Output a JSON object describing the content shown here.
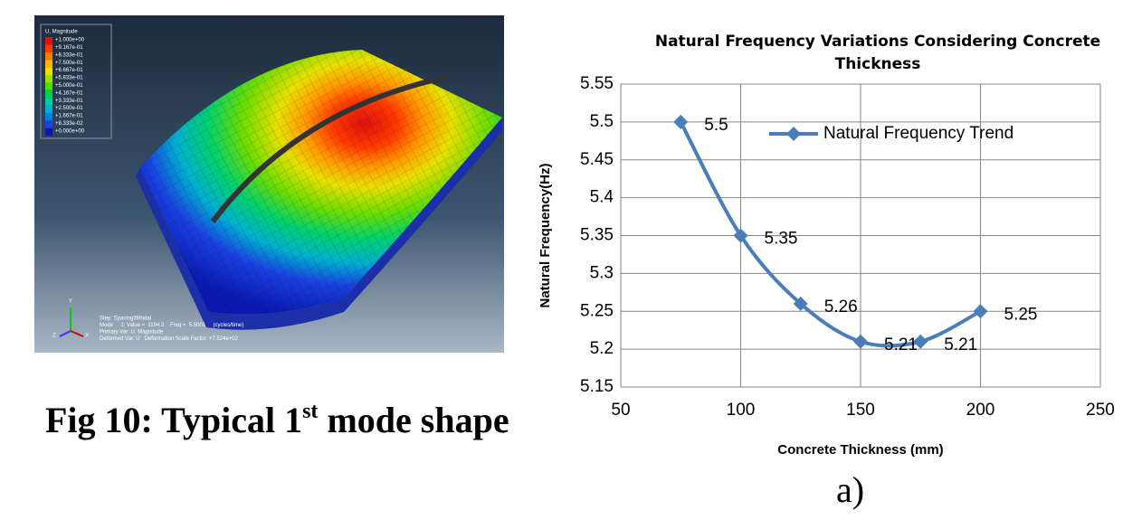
{
  "figure": {
    "legend_title": "U, Magnitude",
    "legend_labels": [
      "+1.000e+00",
      "+9.167e-01",
      "+8.333e-01",
      "+7.500e-01",
      "+6.667e-01",
      "+5.833e-01",
      "+5.000e-01",
      "+4.167e-01",
      "+3.333e-01",
      "+2.500e-01",
      "+1.667e-01",
      "+8.333e-02",
      "+0.000e+00"
    ],
    "info_lines": [
      "Step: Spacing3Modal",
      "Mode     1: Value =  1194.3    Freq =  5.5001     (cycles/time)",
      "Primary Var: U, Magnitude",
      "Deformed Var: U   Deformation Scale Factor: +7.524e+02"
    ],
    "triad": [
      "Y",
      "Z",
      "X"
    ]
  },
  "caption": {
    "text": "Fig 10: Typical 1",
    "sup": "st",
    "rest": " mode shape"
  },
  "chart_data": {
    "type": "line",
    "title": "Natural Frequency Variations Considering Concrete Thickness",
    "x_label": "Concrete Thickness (mm)",
    "y_label": "Natural Frequency(Hz)",
    "x": [
      75,
      100,
      125,
      150,
      175,
      200
    ],
    "series": [
      {
        "name": "Natural Frequency Trend",
        "color": "#4a7ebb",
        "values": [
          5.5,
          5.35,
          5.26,
          5.21,
          5.21,
          5.25
        ]
      }
    ],
    "xlim": [
      50,
      250
    ],
    "xticks": [
      50,
      100,
      150,
      200,
      250
    ],
    "ylim": [
      5.15,
      5.55
    ],
    "yticks": [
      5.15,
      5.2,
      5.25,
      5.3,
      5.35,
      5.4,
      5.45,
      5.5,
      5.55
    ],
    "grid": true,
    "smooth": true,
    "data_labels": true,
    "legend": "upper right"
  },
  "sublabel": "a)"
}
